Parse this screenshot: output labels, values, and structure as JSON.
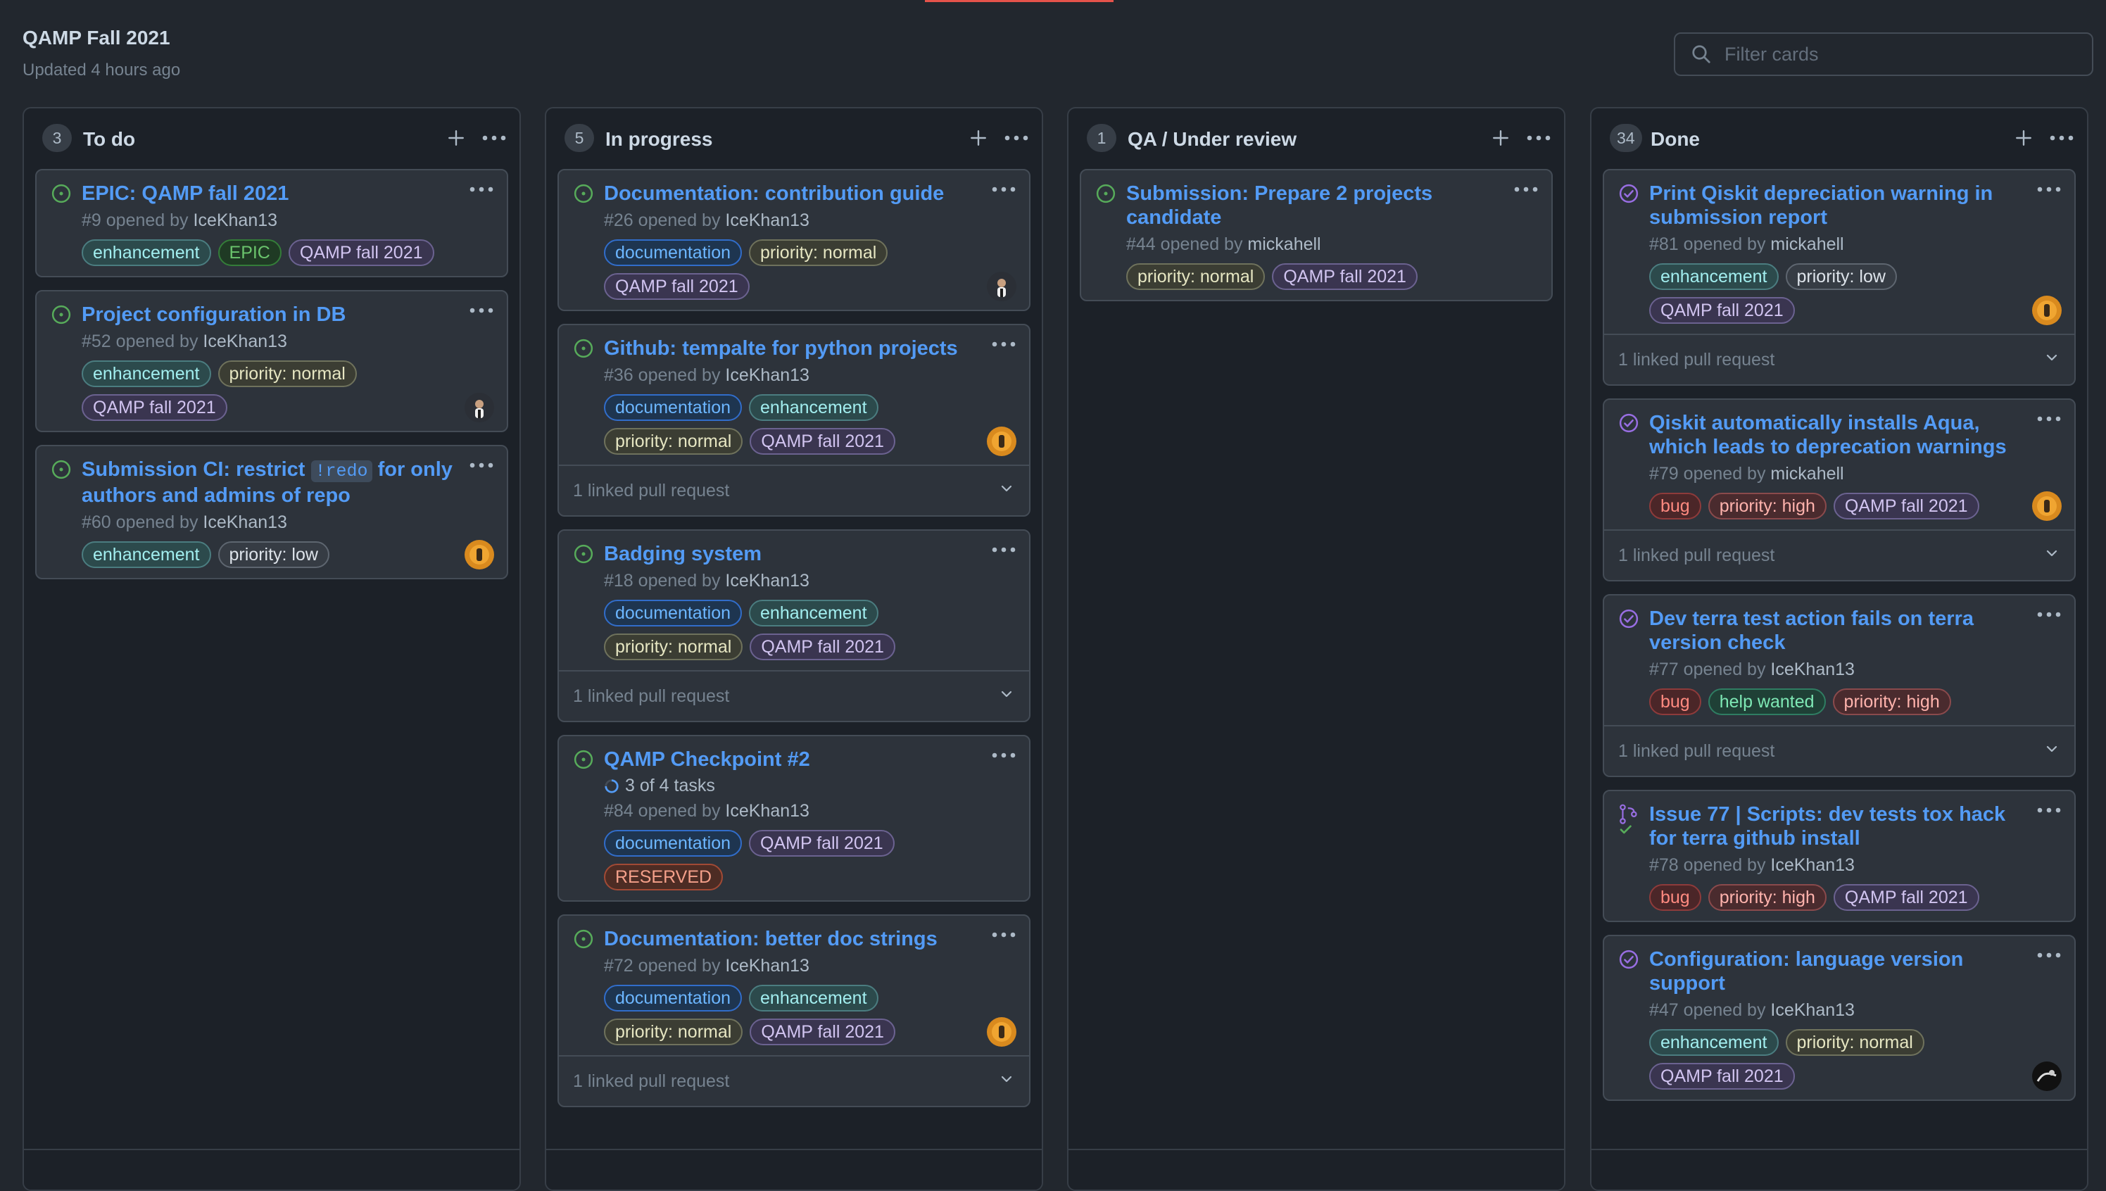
{
  "project": {
    "title": "QAMP Fall 2021",
    "updated": "Updated 4 hours ago",
    "filter_placeholder": "Filter cards"
  },
  "colors": {
    "open": "#57ab5a",
    "closed": "#986ee2",
    "link": "#539bf5"
  },
  "columns": [
    {
      "count": "3",
      "name": "To do",
      "cards": [
        {
          "status": "open",
          "title": "EPIC: QAMP fall 2021",
          "number": "#9",
          "opened_by": "opened by",
          "user": "IceKhan13",
          "labels": [
            "enhancement",
            "EPIC",
            "QAMP fall 2021"
          ],
          "avatar": null
        },
        {
          "status": "open",
          "title": "Project configuration in DB",
          "number": "#52",
          "opened_by": "opened by",
          "user": "IceKhan13",
          "labels": [
            "enhancement",
            "priority: normal",
            "QAMP fall 2021"
          ],
          "avatar": "dark"
        },
        {
          "status": "open",
          "title_pre": "Submission CI: restrict ",
          "title_code": "!redo",
          "title_post": " for only authors and admins of repo",
          "number": "#60",
          "opened_by": "opened by",
          "user": "IceKhan13",
          "labels": [
            "enhancement",
            "priority: low"
          ],
          "avatar": "orange"
        }
      ]
    },
    {
      "count": "5",
      "name": "In progress",
      "cards": [
        {
          "status": "open",
          "title": "Documentation: contribution guide",
          "number": "#26",
          "opened_by": "opened by",
          "user": "IceKhan13",
          "labels": [
            "documentation",
            "priority: normal",
            "QAMP fall 2021"
          ],
          "avatar": "dark"
        },
        {
          "status": "open",
          "title": "Github: tempalte for python projects",
          "number": "#36",
          "opened_by": "opened by",
          "user": "IceKhan13",
          "labels": [
            "documentation",
            "enhancement",
            "priority: normal",
            "QAMP fall 2021"
          ],
          "avatar": "orange",
          "linked": "1 linked pull request"
        },
        {
          "status": "open",
          "title": "Badging system",
          "number": "#18",
          "opened_by": "opened by",
          "user": "IceKhan13",
          "labels": [
            "documentation",
            "enhancement",
            "priority: normal",
            "QAMP fall 2021"
          ],
          "avatar": null,
          "linked": "1 linked pull request"
        },
        {
          "status": "open",
          "title": "QAMP Checkpoint #2",
          "tasks": "3 of 4 tasks",
          "number": "#84",
          "opened_by": "opened by",
          "user": "IceKhan13",
          "labels": [
            "documentation",
            "QAMP fall 2021",
            "RESERVED"
          ],
          "avatar": null
        },
        {
          "status": "open",
          "title": "Documentation: better doc strings",
          "number": "#72",
          "opened_by": "opened by",
          "user": "IceKhan13",
          "labels": [
            "documentation",
            "enhancement",
            "priority: normal",
            "QAMP fall 2021"
          ],
          "avatar": "orange",
          "linked": "1 linked pull request"
        }
      ]
    },
    {
      "count": "1",
      "name": "QA / Under review",
      "cards": [
        {
          "status": "open",
          "title": "Submission: Prepare 2 projects candidate",
          "number": "#44",
          "opened_by": "opened by",
          "user": "mickahell",
          "labels": [
            "priority: normal",
            "QAMP fall 2021"
          ],
          "avatar": null
        }
      ]
    },
    {
      "count": "34",
      "name": "Done",
      "cards": [
        {
          "status": "closed",
          "title": "Print Qiskit depreciation warning in submission report",
          "number": "#81",
          "opened_by": "opened by",
          "user": "mickahell",
          "labels": [
            "enhancement",
            "priority: low",
            "QAMP fall 2021"
          ],
          "avatar": "orange",
          "linked": "1 linked pull request"
        },
        {
          "status": "closed",
          "title": "Qiskit automatically installs Aqua, which leads to deprecation warnings",
          "number": "#79",
          "opened_by": "opened by",
          "user": "mickahell",
          "labels": [
            "bug",
            "priority: high",
            "QAMP fall 2021"
          ],
          "avatar": "orange",
          "linked": "1 linked pull request"
        },
        {
          "status": "closed",
          "title": "Dev terra test action fails on terra version check",
          "number": "#77",
          "opened_by": "opened by",
          "user": "IceKhan13",
          "labels": [
            "bug",
            "help wanted",
            "priority: high"
          ],
          "avatar": null,
          "linked": "1 linked pull request"
        },
        {
          "status": "pr",
          "title": "Issue 77 | Scripts: dev tests tox hack for terra github install",
          "number": "#78",
          "opened_by": "opened by",
          "user": "IceKhan13",
          "labels": [
            "bug",
            "priority: high",
            "QAMP fall 2021"
          ],
          "avatar": null
        },
        {
          "status": "closed",
          "title": "Configuration: language version support",
          "number": "#47",
          "opened_by": "opened by",
          "user": "IceKhan13",
          "labels": [
            "enhancement",
            "priority: normal",
            "QAMP fall 2021"
          ],
          "avatar": "black"
        }
      ]
    }
  ],
  "label_colors": {
    "enhancement": {
      "fg": "#a2eeef",
      "bg": "#2c4a4c",
      "border": "#4b7d80"
    },
    "EPIC": {
      "fg": "#6bc46d",
      "bg": "#1f3a24",
      "border": "#347d39"
    },
    "QAMP fall 2021": {
      "fg": "#d1c4f0",
      "bg": "#3a3550",
      "border": "#6b6290"
    },
    "priority: normal": {
      "fg": "#e6e6c2",
      "bg": "#3b3d33",
      "border": "#6f725c"
    },
    "priority: low": {
      "fg": "#dde3ea",
      "bg": "#363c44",
      "border": "#5e6670"
    },
    "priority: high": {
      "fg": "#ffb3ad",
      "bg": "#4a2b2e",
      "border": "#8a4a4c"
    },
    "documentation": {
      "fg": "#6cb6ff",
      "bg": "#1e3550",
      "border": "#316dca"
    },
    "bug": {
      "fg": "#ff8a80",
      "bg": "#4b2628",
      "border": "#8e3b3b"
    },
    "help wanted": {
      "fg": "#7ee8b5",
      "bg": "#1f4036",
      "border": "#2f7d62"
    },
    "RESERVED": {
      "fg": "#f4a08a",
      "bg": "#4d2c24",
      "border": "#a14a35"
    }
  }
}
